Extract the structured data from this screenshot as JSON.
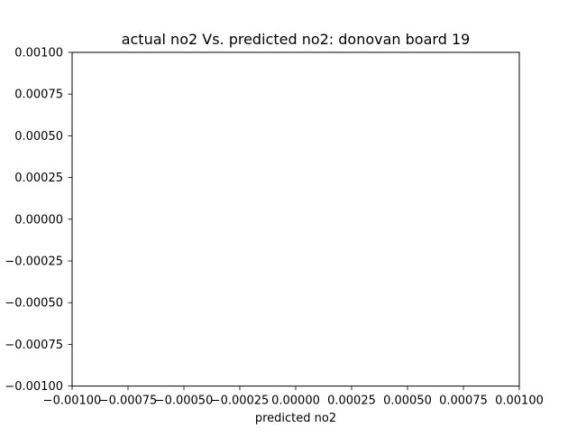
{
  "chart_data": {
    "type": "scatter",
    "title": "actual no2 Vs. predicted no2: donovan board 19",
    "xlabel": "predicted no2",
    "ylabel": "",
    "xlim": [
      -0.001,
      0.001
    ],
    "ylim": [
      -0.001,
      0.001
    ],
    "x_ticks": [
      -0.001,
      -0.00075,
      -0.0005,
      -0.00025,
      0.0,
      0.00025,
      0.0005,
      0.00075,
      0.001
    ],
    "x_tick_labels": [
      "−0.00100",
      "−0.00075",
      "−0.00050",
      "−0.00025",
      "0.00000",
      "0.00025",
      "0.00050",
      "0.00075",
      "0.00100"
    ],
    "y_ticks": [
      0.001,
      0.00075,
      0.0005,
      0.00025,
      0.0,
      -0.00025,
      -0.0005,
      -0.00075,
      -0.001
    ],
    "y_tick_labels": [
      "0.00100",
      "0.00075",
      "0.00050",
      "0.00025",
      "0.00000",
      "−0.00025",
      "−0.00050",
      "−0.00075",
      "−0.00100"
    ],
    "series": [],
    "grid": false,
    "legend": "none"
  }
}
